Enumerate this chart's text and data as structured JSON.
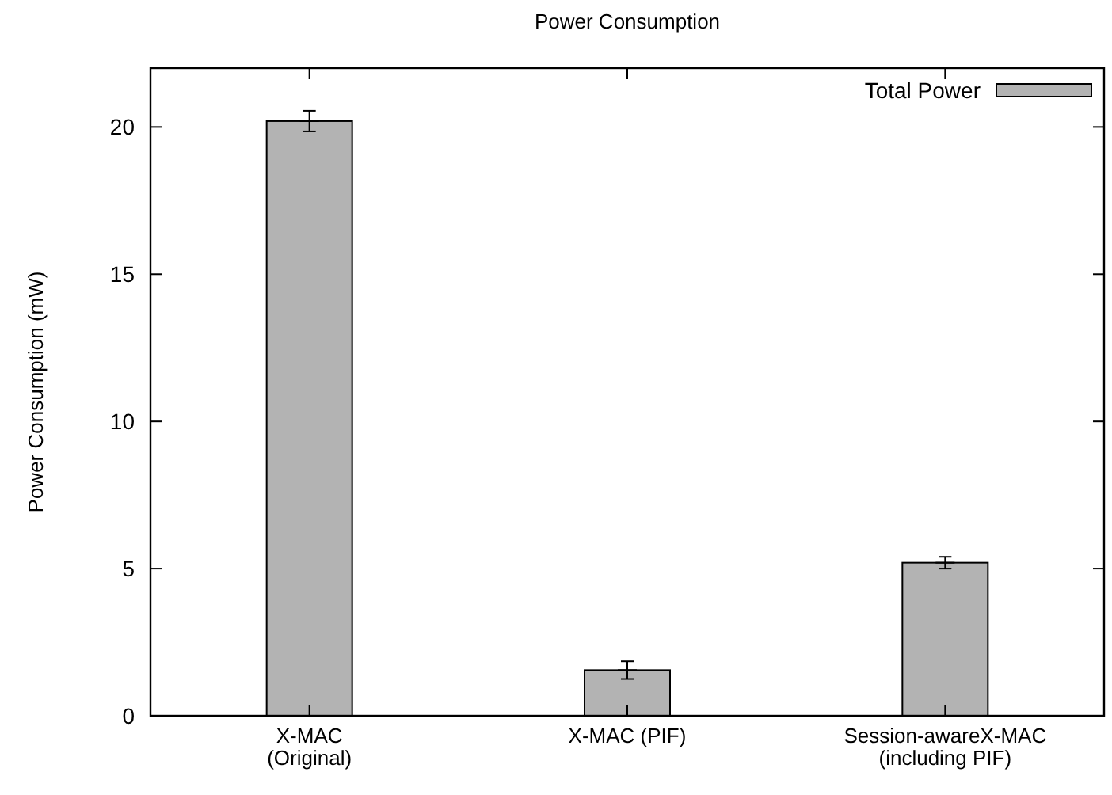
{
  "chart_data": {
    "type": "bar",
    "title": "Power Consumption",
    "ylabel": "Power Consumption (mW)",
    "categories": [
      "X-MAC\n(Original)",
      "X-MAC (PIF)",
      "Session-awareX-MAC\n(including PIF)"
    ],
    "series": [
      {
        "name": "Total Power",
        "color": "#b3b3b3",
        "values": [
          20.2,
          1.55,
          5.2
        ],
        "errors": [
          0.35,
          0.3,
          0.2
        ]
      }
    ],
    "ylim": [
      0,
      22
    ],
    "yticks": [
      0,
      5,
      10,
      15,
      20
    ],
    "legend": "top right",
    "grid": false
  }
}
